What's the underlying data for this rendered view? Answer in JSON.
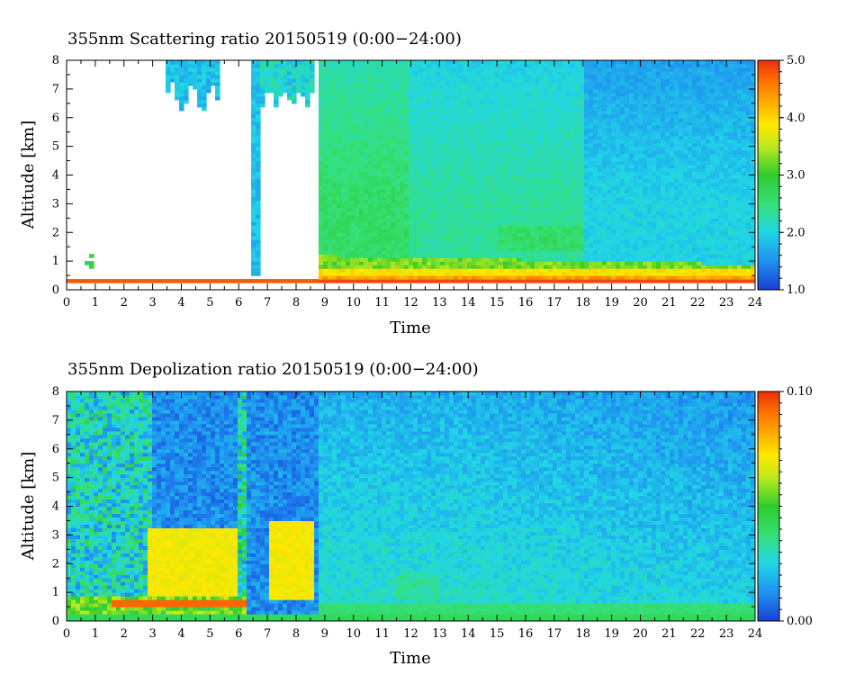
{
  "chart_data": [
    {
      "type": "heatmap",
      "title": "355nm Scattering ratio  20150519 (0:00−24:00)",
      "xlabel": "Time",
      "ylabel": "Altitude [km]",
      "xlim": [
        0,
        24
      ],
      "ylim": [
        0,
        8
      ],
      "x_ticks": [
        "0",
        "1",
        "2",
        "3",
        "4",
        "5",
        "6",
        "7",
        "8",
        "9",
        "10",
        "11",
        "12",
        "13",
        "14",
        "15",
        "16",
        "17",
        "18",
        "19",
        "20",
        "21",
        "22",
        "23",
        "24"
      ],
      "y_ticks": [
        "0",
        "1",
        "2",
        "3",
        "4",
        "5",
        "6",
        "7",
        "8"
      ],
      "colorbar": {
        "range": [
          1.0,
          5.0
        ],
        "tick_labels": [
          "5.0",
          "4.0",
          "3.0",
          "2.0",
          "1.0"
        ],
        "tick_values": [
          5.0,
          4.0,
          3.0,
          2.0,
          1.0
        ]
      },
      "colormap": [
        "#1a3fd6",
        "#1e8ff0",
        "#20d6e6",
        "#35e07a",
        "#2ecc2e",
        "#b8e81e",
        "#ffe800",
        "#ffaa00",
        "#ff6a00",
        "#e83010"
      ]
    },
    {
      "type": "heatmap",
      "title": "355nm Depolization ratio  20150519 (0:00−24:00)",
      "xlabel": "Time",
      "ylabel": "Altitude [km]",
      "xlim": [
        0,
        24
      ],
      "ylim": [
        0,
        8
      ],
      "x_ticks": [
        "0",
        "1",
        "2",
        "3",
        "4",
        "5",
        "6",
        "7",
        "8",
        "9",
        "10",
        "11",
        "12",
        "13",
        "14",
        "15",
        "16",
        "17",
        "18",
        "19",
        "20",
        "21",
        "22",
        "23",
        "24"
      ],
      "y_ticks": [
        "0",
        "1",
        "2",
        "3",
        "4",
        "5",
        "6",
        "7",
        "8"
      ],
      "colorbar": {
        "range": [
          0.0,
          0.1
        ],
        "tick_labels": [
          "0.10",
          "0.00"
        ],
        "tick_values": [
          0.1,
          0.0
        ]
      },
      "colormap": [
        "#1a3fd6",
        "#1e8ff0",
        "#20d6e6",
        "#35e07a",
        "#2ecc2e",
        "#b8e81e",
        "#ffe800",
        "#ffaa00",
        "#ff6a00",
        "#e83010"
      ]
    }
  ]
}
